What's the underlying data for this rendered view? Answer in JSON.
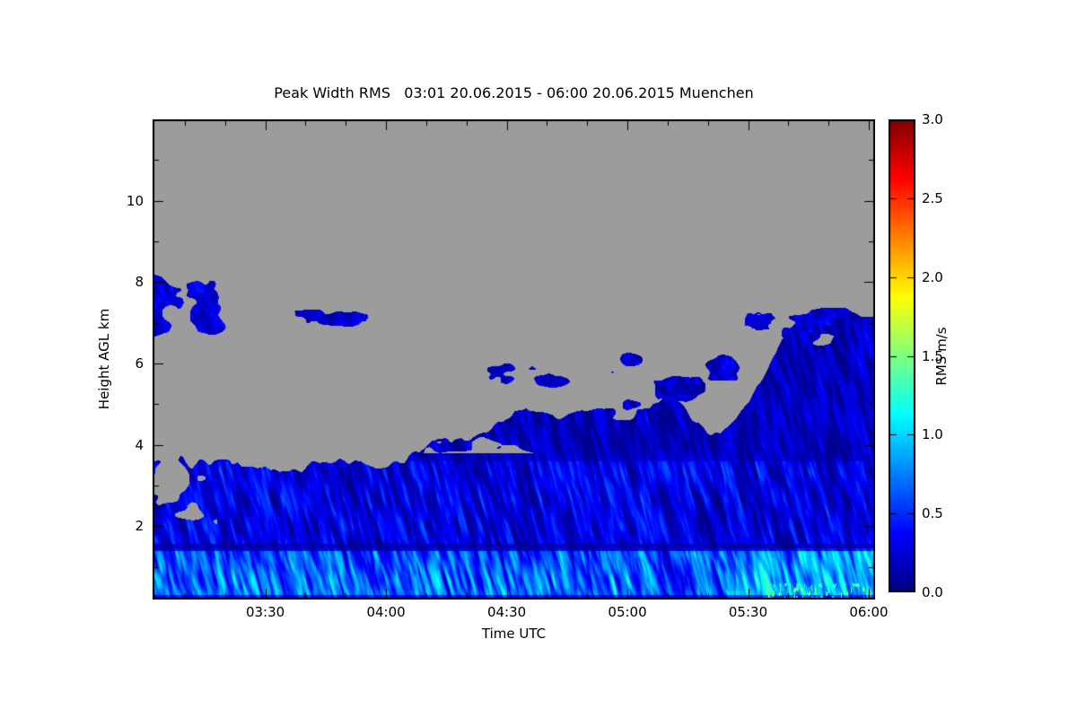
{
  "figure": {
    "background": "#ffffff"
  },
  "chart_data": {
    "type": "heatmap",
    "title": "Peak Width RMS   03:01 20.06.2015 - 06:00 20.06.2015 Muenchen",
    "xlabel": "Time UTC",
    "ylabel": "Height AGL km",
    "colorbar_label": "RMS m/s",
    "colormap": "jet",
    "nodata_color": "#9c9c9c",
    "x_range_hours": [
      3.033,
      6.026
    ],
    "y_range_km": [
      0.2,
      12.0
    ],
    "colorbar_range": [
      0.0,
      3.0
    ],
    "x_ticks": [
      {
        "hour": 3.5,
        "label": "03:30"
      },
      {
        "hour": 4.0,
        "label": "04:00"
      },
      {
        "hour": 4.5,
        "label": "04:30"
      },
      {
        "hour": 5.0,
        "label": "05:00"
      },
      {
        "hour": 5.5,
        "label": "05:30"
      },
      {
        "hour": 6.0,
        "label": "06:00"
      }
    ],
    "y_ticks": [
      {
        "km": 2,
        "label": "2"
      },
      {
        "km": 4,
        "label": "4"
      },
      {
        "km": 6,
        "label": "6"
      },
      {
        "km": 8,
        "label": "8"
      },
      {
        "km": 10,
        "label": "10"
      }
    ],
    "colorbar_ticks": [
      {
        "value": 0.0,
        "label": "0.0"
      },
      {
        "value": 0.5,
        "label": "0.5"
      },
      {
        "value": 1.0,
        "label": "1.0"
      },
      {
        "value": 1.5,
        "label": "1.5"
      },
      {
        "value": 2.0,
        "label": "2.0"
      },
      {
        "value": 2.5,
        "label": "2.5"
      },
      {
        "value": 3.0,
        "label": "3.0"
      }
    ],
    "field": {
      "surface_layer": {
        "h_top_km": 1.45,
        "rms_base": 0.55,
        "rms_variation": 0.6
      },
      "mid_layer": {
        "h_top_km": 3.6,
        "rms_base": 0.27,
        "rms_variation": 0.42
      },
      "upper_layer": {
        "rms_base": 0.17,
        "rms_variation": 0.3
      },
      "main_top_boundary_km": [
        [
          3.03,
          3.55
        ],
        [
          3.35,
          3.4
        ],
        [
          3.7,
          3.6
        ],
        [
          4.0,
          3.7
        ],
        [
          4.2,
          3.95
        ],
        [
          4.42,
          4.6
        ],
        [
          4.58,
          4.9
        ],
        [
          4.7,
          4.55
        ],
        [
          4.85,
          4.8
        ],
        [
          5.0,
          4.85
        ],
        [
          5.17,
          5.1
        ],
        [
          5.33,
          4.45
        ],
        [
          5.45,
          4.85
        ],
        [
          5.55,
          5.5
        ],
        [
          5.67,
          6.9
        ],
        [
          5.8,
          7.1
        ],
        [
          6.03,
          7.1
        ]
      ],
      "boundary_raggedness_km": 0.35,
      "hole_threshold": 0.3,
      "hotspot": {
        "t_start_hour": 5.58,
        "h_max_km": 0.6,
        "rms_peak": 2.1
      },
      "patches": [
        {
          "name": "upper-left-cloud",
          "t": [
            2.85,
            3.36
          ],
          "h": [
            6.55,
            8.3
          ],
          "rms_base": 0.22,
          "rms_variation": 0.3,
          "threshold": 0.38,
          "seed": 11,
          "ft": 7,
          "fh": 1.6
        },
        {
          "name": "small-cloud-0345",
          "t": [
            3.55,
            3.95
          ],
          "h": [
            6.85,
            7.35
          ],
          "rms_base": 0.2,
          "rms_variation": 0.25,
          "threshold": 0.44,
          "seed": 23,
          "ft": 10,
          "fh": 3
        },
        {
          "name": "mid-cloud-0430",
          "t": [
            4.38,
            4.8
          ],
          "h": [
            5.35,
            6.15
          ],
          "rms_base": 0.18,
          "rms_variation": 0.28,
          "threshold": 0.43,
          "seed": 31,
          "ft": 7,
          "fh": 2
        },
        {
          "name": "mid-cloud-0450-0530",
          "t": [
            4.72,
            5.6
          ],
          "h": [
            4.55,
            6.55
          ],
          "rms_base": 0.18,
          "rms_variation": 0.3,
          "threshold": 0.47,
          "seed": 41,
          "ft": 5,
          "fh": 1.3
        },
        {
          "name": "tiny-cloud-0531",
          "t": [
            5.47,
            5.63
          ],
          "h": [
            6.8,
            7.3
          ],
          "rms_base": 0.2,
          "rms_variation": 0.2,
          "threshold": 0.42,
          "seed": 53,
          "ft": 22,
          "fh": 5
        },
        {
          "name": "right-top-cloud",
          "t": [
            5.6,
            6.1
          ],
          "h": [
            6.3,
            7.45
          ],
          "rms_base": 0.2,
          "rms_variation": 0.28,
          "threshold": 0.4,
          "seed": 61,
          "ft": 7,
          "fh": 2
        }
      ]
    }
  }
}
